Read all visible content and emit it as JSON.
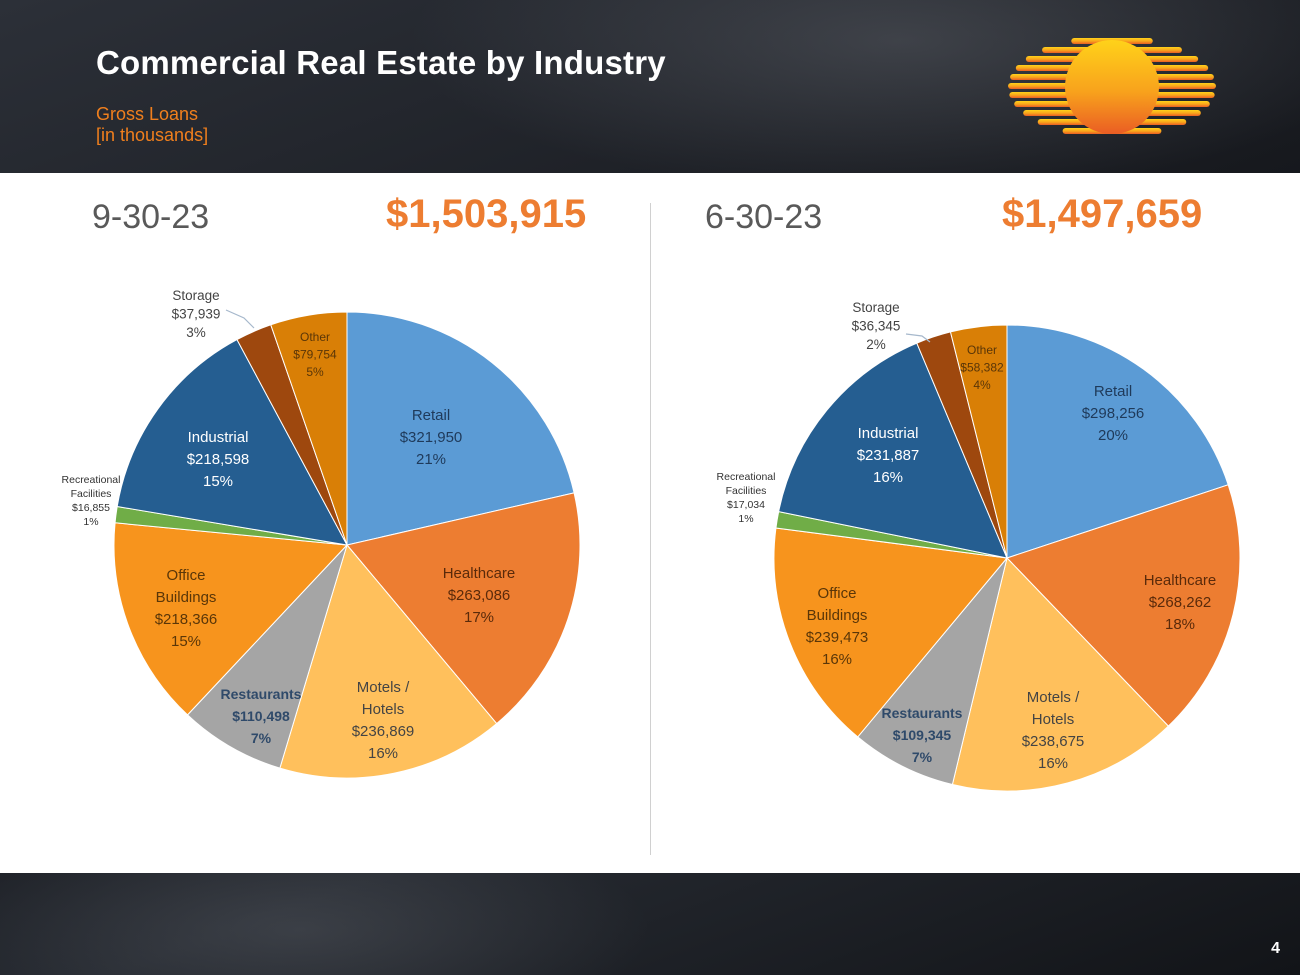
{
  "slide": {
    "title": "Commercial Real Estate by Industry",
    "subtitle_line1": "Gross Loans",
    "subtitle_line2": "[in thousands]",
    "page_number": "4"
  },
  "colors": {
    "accent": "#ed7d31",
    "title": "#ffffff",
    "subtitle": "#f07f1d"
  },
  "chart_data": [
    {
      "type": "pie",
      "title": "9-30-23",
      "total": "$1,503,915",
      "slices": [
        {
          "name": "Retail",
          "label": [
            "Retail",
            "$321,950",
            "21%"
          ],
          "value": 321950,
          "color": "#5b9bd5"
        },
        {
          "name": "Healthcare",
          "label": [
            "Healthcare",
            "$263,086",
            "17%"
          ],
          "value": 263086,
          "color": "#ed7d31"
        },
        {
          "name": "Motels / Hotels",
          "label": [
            "Motels /",
            "Hotels",
            "$236,869",
            "16%"
          ],
          "value": 236869,
          "color": "#ffc05c"
        },
        {
          "name": "Restaurants",
          "label": [
            "Restaurants",
            "$110,498",
            "7%"
          ],
          "value": 110498,
          "color": "#a5a5a5"
        },
        {
          "name": "Office Buildings",
          "label": [
            "Office",
            "Buildings",
            "$218,366",
            "15%"
          ],
          "value": 218366,
          "color": "#f7941d"
        },
        {
          "name": "Recreational Facilities",
          "label": [
            "Recreational",
            "Facilities",
            "$16,855",
            "1%"
          ],
          "value": 16855,
          "color": "#70ad47"
        },
        {
          "name": "Industrial",
          "label": [
            "Industrial",
            "$218,598",
            "15%"
          ],
          "value": 218598,
          "color": "#255e91"
        },
        {
          "name": "Storage",
          "label": [
            "Storage",
            "$37,939",
            "3%"
          ],
          "value": 37939,
          "color": "#9e480e"
        },
        {
          "name": "Other",
          "label": [
            "Other",
            "$79,754",
            "5%"
          ],
          "value": 79754,
          "color": "#d97f06"
        }
      ]
    },
    {
      "type": "pie",
      "title": "6-30-23",
      "total": "$1,497,659",
      "slices": [
        {
          "name": "Retail",
          "label": [
            "Retail",
            "$298,256",
            "20%"
          ],
          "value": 298256,
          "color": "#5b9bd5"
        },
        {
          "name": "Healthcare",
          "label": [
            "Healthcare",
            "$268,262",
            "18%"
          ],
          "value": 268262,
          "color": "#ed7d31"
        },
        {
          "name": "Motels / Hotels",
          "label": [
            "Motels /",
            "Hotels",
            "$238,675",
            "16%"
          ],
          "value": 238675,
          "color": "#ffc05c"
        },
        {
          "name": "Restaurants",
          "label": [
            "Restaurants",
            "$109,345",
            "7%"
          ],
          "value": 109345,
          "color": "#a5a5a5"
        },
        {
          "name": "Office Buildings",
          "label": [
            "Office",
            "Buildings",
            "$239,473",
            "16%"
          ],
          "value": 239473,
          "color": "#f7941d"
        },
        {
          "name": "Recreational Facilities",
          "label": [
            "Recreational",
            "Facilities",
            "$17,034",
            "1%"
          ],
          "value": 17034,
          "color": "#70ad47"
        },
        {
          "name": "Industrial",
          "label": [
            "Industrial",
            "$231,887",
            "16%"
          ],
          "value": 231887,
          "color": "#255e91"
        },
        {
          "name": "Storage",
          "label": [
            "Storage",
            "$36,345",
            "2%"
          ],
          "value": 36345,
          "color": "#9e480e"
        },
        {
          "name": "Other",
          "label": [
            "Other",
            "$58,382",
            "4%"
          ],
          "value": 58382,
          "color": "#d97f06"
        }
      ]
    }
  ]
}
